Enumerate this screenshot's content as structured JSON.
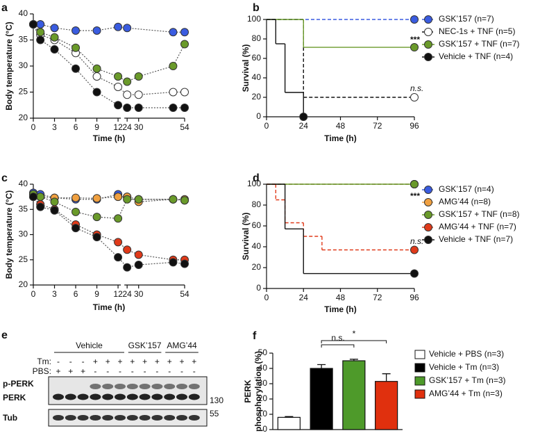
{
  "chart_data": [
    {
      "type": "line",
      "label": "a",
      "xlabel": "Time (h)",
      "ylabel": "Body temperature (°C)",
      "xlim": [
        0,
        54
      ],
      "x_break": [
        12,
        24
      ],
      "xticks": [
        0,
        3,
        6,
        9,
        12,
        24,
        30,
        54
      ],
      "ylim": [
        20,
        40
      ],
      "yticks": [
        20,
        25,
        30,
        35,
        40
      ],
      "line_color": "#555555",
      "series": [
        {
          "color": "#3a5ce0",
          "x": [
            0,
            1,
            3,
            6,
            9,
            12,
            24,
            48,
            54
          ],
          "values": [
            38,
            38,
            37.3,
            36.8,
            36.8,
            37.5,
            37.3,
            36.5,
            36.5
          ]
        },
        {
          "color": "#ffffff",
          "x": [
            0,
            1,
            3,
            6,
            9,
            12,
            24,
            30,
            48,
            54
          ],
          "values": [
            38,
            36,
            35,
            32.5,
            28,
            26,
            24.5,
            24.5,
            25,
            25
          ]
        },
        {
          "color": "#6a9a2a",
          "x": [
            0,
            1,
            3,
            6,
            9,
            12,
            24,
            30,
            48,
            54
          ],
          "values": [
            38,
            36.5,
            35.5,
            33.5,
            29.5,
            28,
            27,
            28,
            30,
            34.2
          ]
        },
        {
          "color": "#111111",
          "x": [
            0,
            1,
            3,
            6,
            9,
            12,
            24,
            30,
            48,
            54
          ],
          "values": [
            38,
            35,
            33.2,
            29.5,
            25,
            22.5,
            22,
            22,
            22,
            22
          ]
        }
      ]
    },
    {
      "type": "step",
      "label": "b",
      "xlabel": "Time (h)",
      "ylabel": "Survival (%)",
      "xlim": [
        0,
        96
      ],
      "xticks": [
        0,
        24,
        48,
        72,
        96
      ],
      "ylim": [
        0,
        100
      ],
      "yticks": [
        0,
        20,
        40,
        60,
        80,
        100
      ],
      "annotations": [
        "***",
        "n.s."
      ],
      "series": [
        {
          "name": "GSK’157 (n=7)",
          "color": "#3a5ce0",
          "dashed": true,
          "x": [
            0,
            96
          ],
          "values": [
            100,
            100
          ]
        },
        {
          "name": "NEC-1s + TNF (n=5)",
          "color": "#ffffff",
          "line_color": "#111111",
          "dashed": true,
          "x": [
            0,
            24,
            96
          ],
          "values": [
            100,
            20,
            20
          ]
        },
        {
          "name": "GSK’157 + TNF (n=7)",
          "color": "#6a9a2a",
          "dashed": false,
          "x": [
            0,
            24,
            96
          ],
          "values": [
            100,
            71.4,
            71.4
          ]
        },
        {
          "name": "Vehicle + TNF (n=4)",
          "color": "#111111",
          "dashed": false,
          "x": [
            0,
            6,
            12,
            24
          ],
          "values": [
            100,
            75,
            25,
            0
          ]
        }
      ]
    },
    {
      "type": "line",
      "label": "c",
      "xlabel": "Time (h)",
      "ylabel": "Body temperature (°C)",
      "xlim": [
        0,
        54
      ],
      "x_break": [
        12,
        24
      ],
      "xticks": [
        0,
        3,
        6,
        9,
        12,
        24,
        30,
        54
      ],
      "ylim": [
        20,
        40
      ],
      "yticks": [
        20,
        25,
        30,
        35,
        40
      ],
      "line_color": "#555555",
      "series": [
        {
          "color": "#3a5ce0",
          "x": [
            0,
            1,
            3,
            6,
            9,
            12,
            24,
            30,
            48,
            54
          ],
          "values": [
            38.3,
            38,
            37.3,
            37,
            37,
            38,
            37.5,
            37,
            37,
            36.8
          ]
        },
        {
          "color": "#f0a040",
          "x": [
            0,
            1,
            3,
            6,
            9,
            12,
            24,
            30,
            48,
            54
          ],
          "values": [
            38,
            37.5,
            37.3,
            37.3,
            37.2,
            37.5,
            37.5,
            36.5,
            37,
            37
          ]
        },
        {
          "color": "#6a9a2a",
          "x": [
            0,
            1,
            3,
            6,
            9,
            12,
            24,
            30,
            48,
            54
          ],
          "values": [
            38,
            37.5,
            36.5,
            34.5,
            33.5,
            33.2,
            37,
            37,
            37,
            36.8
          ]
        },
        {
          "color": "#e03a1a",
          "x": [
            0,
            1,
            3,
            6,
            9,
            12,
            24,
            30,
            48,
            54
          ],
          "values": [
            37.5,
            36,
            35,
            32,
            30,
            28.5,
            27,
            26,
            25,
            25
          ]
        },
        {
          "color": "#111111",
          "x": [
            0,
            1,
            3,
            6,
            9,
            12,
            24,
            30,
            48,
            54
          ],
          "values": [
            37.5,
            35.5,
            34.8,
            31.3,
            29.5,
            25.5,
            23.5,
            24,
            24.5,
            24.2
          ]
        }
      ]
    },
    {
      "type": "step",
      "label": "d",
      "xlabel": "Time (h)",
      "ylabel": "Survival (%)",
      "xlim": [
        0,
        96
      ],
      "xticks": [
        0,
        24,
        48,
        72,
        96
      ],
      "ylim": [
        0,
        100
      ],
      "yticks": [
        0,
        20,
        40,
        60,
        80,
        100
      ],
      "annotations": [
        "***",
        "n.s."
      ],
      "series": [
        {
          "name": "GSK’157 (n=4)",
          "color": "#3a5ce0",
          "dashed": true,
          "x": [
            0,
            96
          ],
          "values": [
            100,
            100
          ]
        },
        {
          "name": "AMG’44 (n=8)",
          "color": "#f0a040",
          "dashed": true,
          "x": [
            0,
            96
          ],
          "values": [
            100,
            100
          ]
        },
        {
          "name": "GSK’157 + TNF (n=8)",
          "color": "#6a9a2a",
          "dashed": false,
          "x": [
            0,
            96
          ],
          "values": [
            100,
            100
          ]
        },
        {
          "name": "AMG’44 + TNF (n=7)",
          "color": "#e03a1a",
          "dashed": true,
          "x": [
            0,
            6,
            12,
            24,
            36,
            96
          ],
          "values": [
            100,
            85,
            63,
            50,
            37,
            37
          ]
        },
        {
          "name": "Vehicle + TNF (n=7)",
          "color": "#111111",
          "dashed": false,
          "x": [
            0,
            12,
            24,
            96
          ],
          "values": [
            100,
            57.1,
            14.3,
            14.3
          ]
        }
      ]
    },
    {
      "type": "bar",
      "label": "f",
      "ylabel": [
        "PERK",
        "phosphorylation (%)"
      ],
      "ylim": [
        0,
        50
      ],
      "yticks": [
        0,
        10,
        20,
        30,
        40,
        50
      ],
      "annotations": [
        "n.s.",
        "*"
      ],
      "series": [
        {
          "name": "Vehicle + PBS (n=3)",
          "color": "#ffffff",
          "values": [
            8
          ],
          "errors": [
            0.5
          ]
        },
        {
          "name": "Vehicle + Tm (n=3)",
          "color": "#000000",
          "values": [
            40
          ],
          "errors": [
            2.5
          ]
        },
        {
          "name": "GSK’157 + Tm (n=3)",
          "color": "#4e9a2a",
          "values": [
            45
          ],
          "errors": [
            1
          ]
        },
        {
          "name": "AMG’44 + Tm (n=3)",
          "color": "#e0300e",
          "values": [
            31.5
          ],
          "errors": [
            5
          ]
        }
      ]
    }
  ],
  "blot": {
    "label": "e",
    "groups": [
      "Vehicle",
      "GSK’157",
      "AMG’44"
    ],
    "rows": [
      {
        "label": "Tm:",
        "signs": [
          "-",
          "-",
          "-",
          "+",
          "+",
          "+",
          "+",
          "+",
          "+",
          "+",
          "+",
          "+"
        ]
      },
      {
        "label": "PBS:",
        "signs": [
          "+",
          "+",
          "+",
          "-",
          "-",
          "-",
          "-",
          "-",
          "-",
          "-",
          "-",
          "-"
        ]
      }
    ],
    "bands": [
      "p-PERK",
      "PERK",
      "Tub"
    ],
    "markers": [
      "130",
      "55"
    ]
  }
}
